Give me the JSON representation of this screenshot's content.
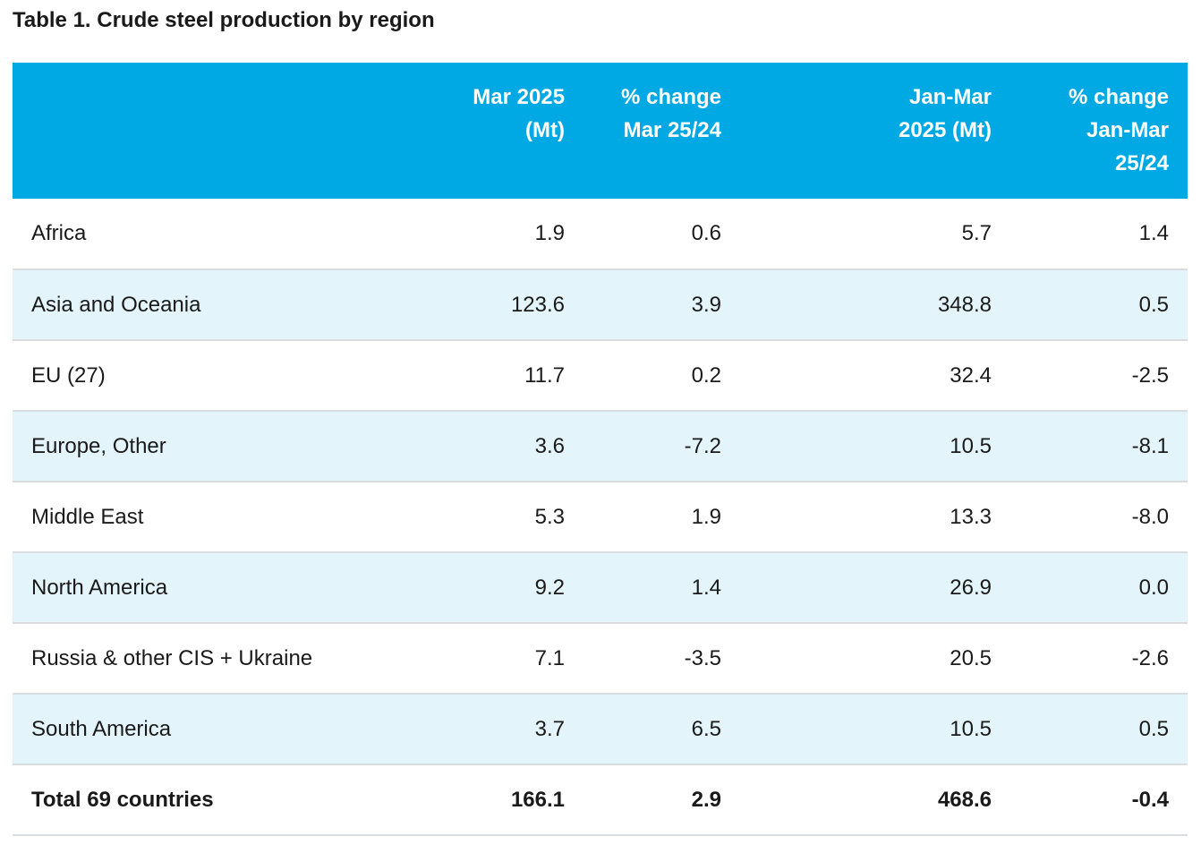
{
  "title": "Table 1. Crude steel production by region",
  "colors": {
    "header_bg": "#00a9e3",
    "header_text": "#ffffff",
    "alt_row_bg": "#e3f4fb",
    "divider": "#d9dde0"
  },
  "table": {
    "headers": [
      {
        "line1": "",
        "line2": "",
        "line3": ""
      },
      {
        "line1": "Mar 2025",
        "line2": "(Mt)",
        "line3": ""
      },
      {
        "line1": "% change",
        "line2": "Mar 25/24",
        "line3": ""
      },
      {
        "line1": "Jan-Mar",
        "line2": "2025 (Mt)",
        "line3": ""
      },
      {
        "line1": "% change",
        "line2": "Jan-Mar",
        "line3": "25/24"
      }
    ],
    "rows": [
      {
        "region": "Africa",
        "mar_2025": "1.9",
        "pct_mar": "0.6",
        "jan_mar_2025": "5.7",
        "pct_jan_mar": "1.4"
      },
      {
        "region": "Asia and Oceania",
        "mar_2025": "123.6",
        "pct_mar": "3.9",
        "jan_mar_2025": "348.8",
        "pct_jan_mar": "0.5"
      },
      {
        "region": "EU (27)",
        "mar_2025": "11.7",
        "pct_mar": "0.2",
        "jan_mar_2025": "32.4",
        "pct_jan_mar": "-2.5"
      },
      {
        "region": "Europe, Other",
        "mar_2025": "3.6",
        "pct_mar": "-7.2",
        "jan_mar_2025": "10.5",
        "pct_jan_mar": "-8.1"
      },
      {
        "region": "Middle East",
        "mar_2025": "5.3",
        "pct_mar": "1.9",
        "jan_mar_2025": "13.3",
        "pct_jan_mar": "-8.0"
      },
      {
        "region": "North America",
        "mar_2025": "9.2",
        "pct_mar": "1.4",
        "jan_mar_2025": "26.9",
        "pct_jan_mar": "0.0"
      },
      {
        "region": "Russia & other CIS + Ukraine",
        "mar_2025": "7.1",
        "pct_mar": "-3.5",
        "jan_mar_2025": "20.5",
        "pct_jan_mar": "-2.6"
      },
      {
        "region": "South America",
        "mar_2025": "3.7",
        "pct_mar": "6.5",
        "jan_mar_2025": "10.5",
        "pct_jan_mar": "0.5"
      }
    ],
    "total": {
      "region": "Total 69 countries",
      "mar_2025": "166.1",
      "pct_mar": "2.9",
      "jan_mar_2025": "468.6",
      "pct_jan_mar": "-0.4"
    }
  }
}
